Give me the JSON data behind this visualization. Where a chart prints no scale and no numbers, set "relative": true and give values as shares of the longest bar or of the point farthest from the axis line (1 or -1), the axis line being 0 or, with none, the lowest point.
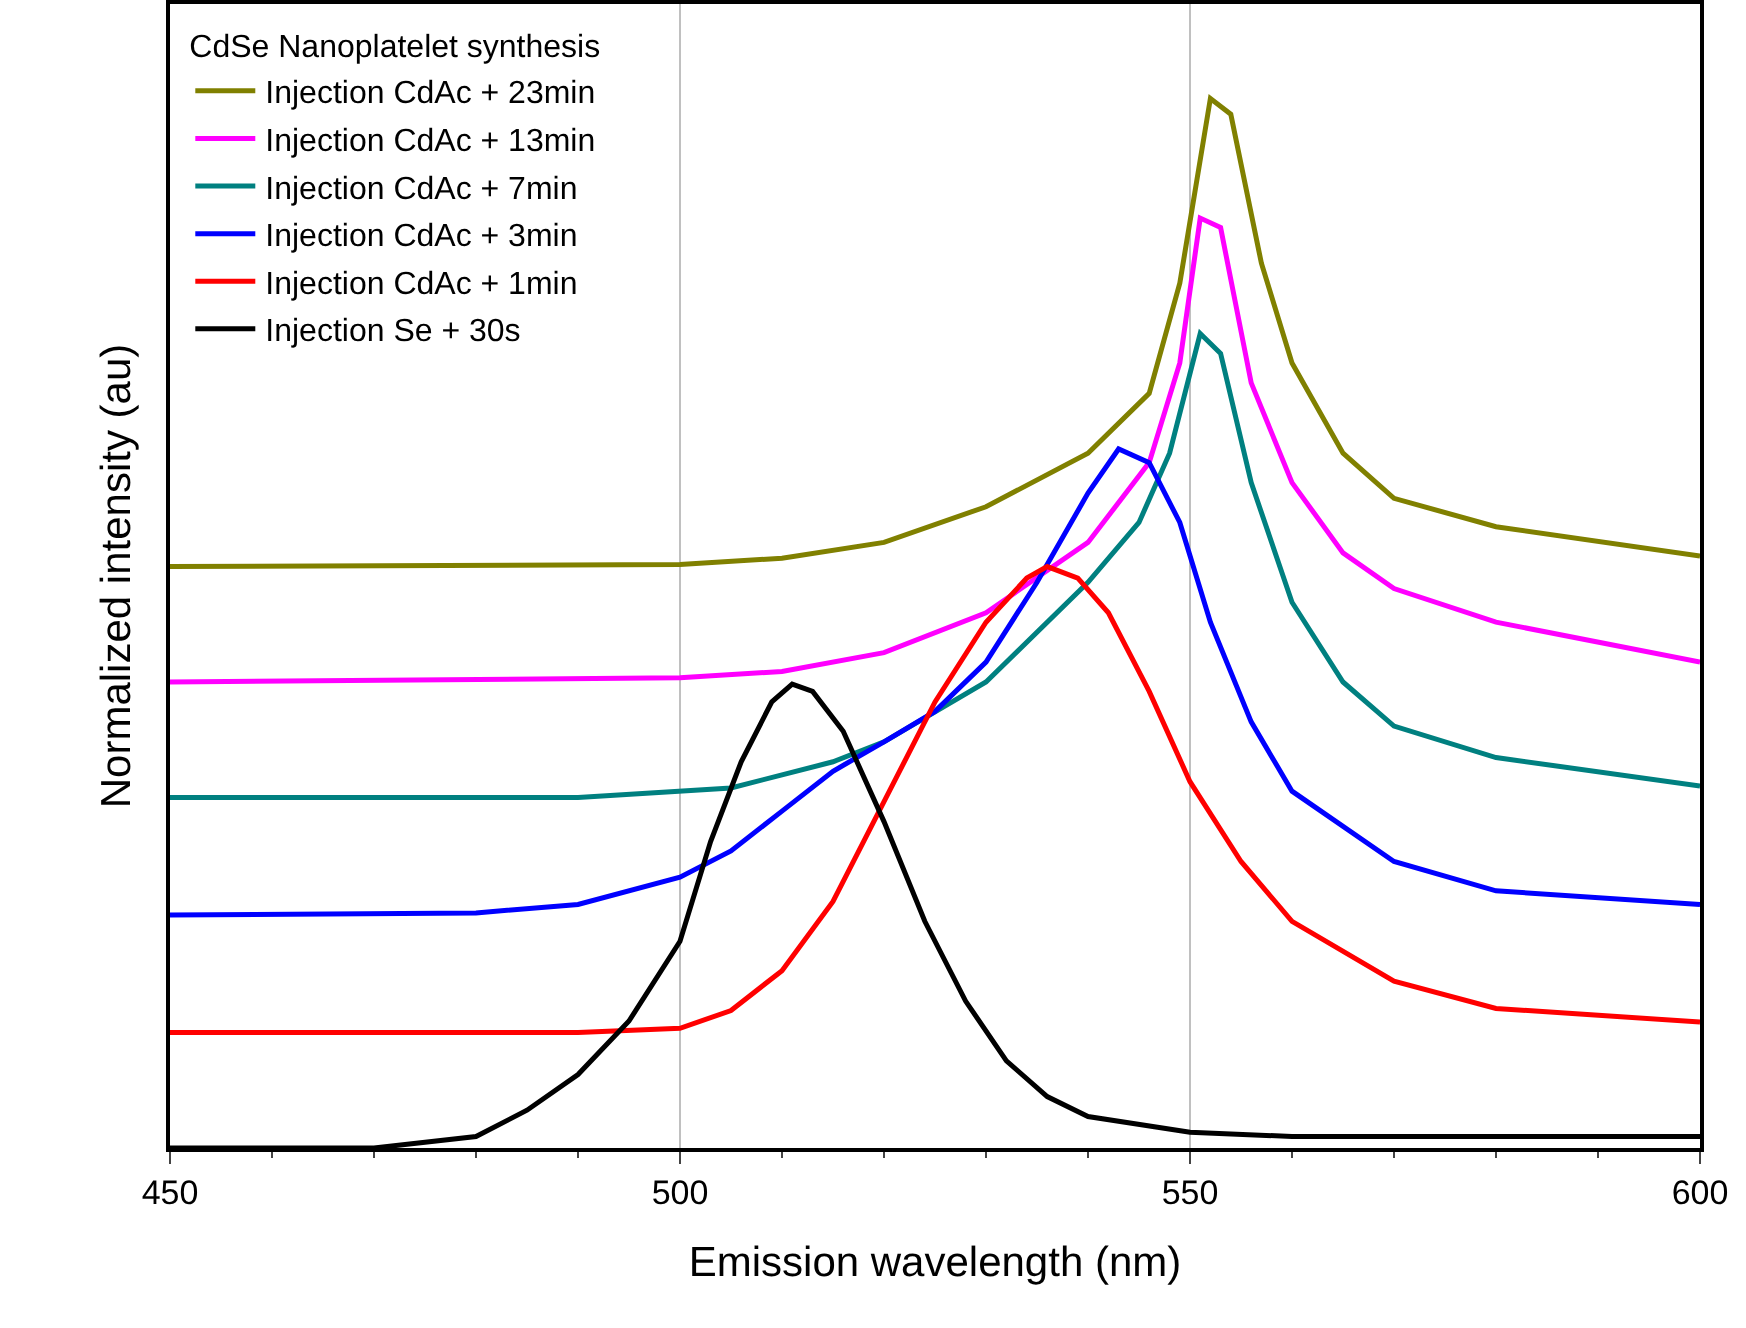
{
  "chart_data": {
    "type": "line",
    "relative": true,
    "xlabel": "Emission wavelength (nm)",
    "ylabel": "Normalized intensity (au)",
    "legend_title": "CdSe Nanoplatelet synthesis",
    "legend": "top left",
    "grid": "x",
    "xlim": [
      450,
      600
    ],
    "xticks": [
      450,
      500,
      550,
      600
    ],
    "series": [
      {
        "name": "Injection CdAc + 23min",
        "color": "#808000",
        "x": [
          450,
          500,
          510,
          520,
          530,
          540,
          546,
          549,
          552,
          554,
          557,
          560,
          565,
          570,
          580,
          600
        ],
        "values": [
          0.554,
          0.556,
          0.562,
          0.577,
          0.611,
          0.662,
          0.719,
          0.824,
          1,
          0.985,
          0.843,
          0.748,
          0.662,
          0.619,
          0.592,
          0.564
        ]
      },
      {
        "name": "Injection CdAc + 13min",
        "color": "#ff00ff",
        "x": [
          450,
          500,
          510,
          520,
          530,
          540,
          546,
          549,
          551,
          553,
          556,
          560,
          565,
          570,
          580,
          600
        ],
        "values": [
          0.444,
          0.448,
          0.454,
          0.472,
          0.51,
          0.577,
          0.653,
          0.748,
          0.886,
          0.877,
          0.729,
          0.634,
          0.567,
          0.533,
          0.501,
          0.463
        ]
      },
      {
        "name": "Injection CdAc + 7min",
        "color": "#008080",
        "x": [
          450,
          490,
          505,
          515,
          520,
          530,
          540,
          545,
          548,
          551,
          553,
          556,
          560,
          565,
          570,
          580,
          600
        ],
        "values": [
          0.334,
          0.334,
          0.343,
          0.368,
          0.387,
          0.444,
          0.539,
          0.596,
          0.662,
          0.776,
          0.757,
          0.634,
          0.52,
          0.444,
          0.402,
          0.372,
          0.345
        ]
      },
      {
        "name": "Injection CdAc + 3min",
        "color": "#0000ff",
        "x": [
          450,
          480,
          490,
          500,
          505,
          510,
          515,
          520,
          525,
          530,
          535,
          540,
          543,
          546,
          549,
          552,
          556,
          560,
          570,
          580,
          600
        ],
        "values": [
          0.222,
          0.224,
          0.232,
          0.258,
          0.283,
          0.321,
          0.359,
          0.387,
          0.416,
          0.463,
          0.539,
          0.624,
          0.666,
          0.653,
          0.596,
          0.501,
          0.406,
          0.34,
          0.273,
          0.245,
          0.232
        ]
      },
      {
        "name": "Injection CdAc + 1min",
        "color": "#ff0000",
        "x": [
          450,
          490,
          500,
          505,
          510,
          515,
          520,
          525,
          530,
          534,
          536,
          539,
          542,
          546,
          550,
          555,
          560,
          570,
          580,
          600
        ],
        "values": [
          0.11,
          0.11,
          0.114,
          0.131,
          0.169,
          0.235,
          0.33,
          0.425,
          0.501,
          0.543,
          0.554,
          0.543,
          0.51,
          0.435,
          0.349,
          0.273,
          0.216,
          0.159,
          0.133,
          0.12
        ]
      },
      {
        "name": "Injection Se + 30s",
        "color": "#000000",
        "x": [
          450,
          470,
          480,
          485,
          490,
          495,
          500,
          503,
          506,
          509,
          511,
          513,
          516,
          520,
          524,
          528,
          532,
          536,
          540,
          550,
          560,
          600
        ],
        "values": [
          0,
          0,
          0.011,
          0.036,
          0.07,
          0.121,
          0.197,
          0.292,
          0.368,
          0.425,
          0.442,
          0.435,
          0.397,
          0.311,
          0.216,
          0.14,
          0.083,
          0.049,
          0.03,
          0.015,
          0.011,
          0.011
        ]
      }
    ]
  }
}
